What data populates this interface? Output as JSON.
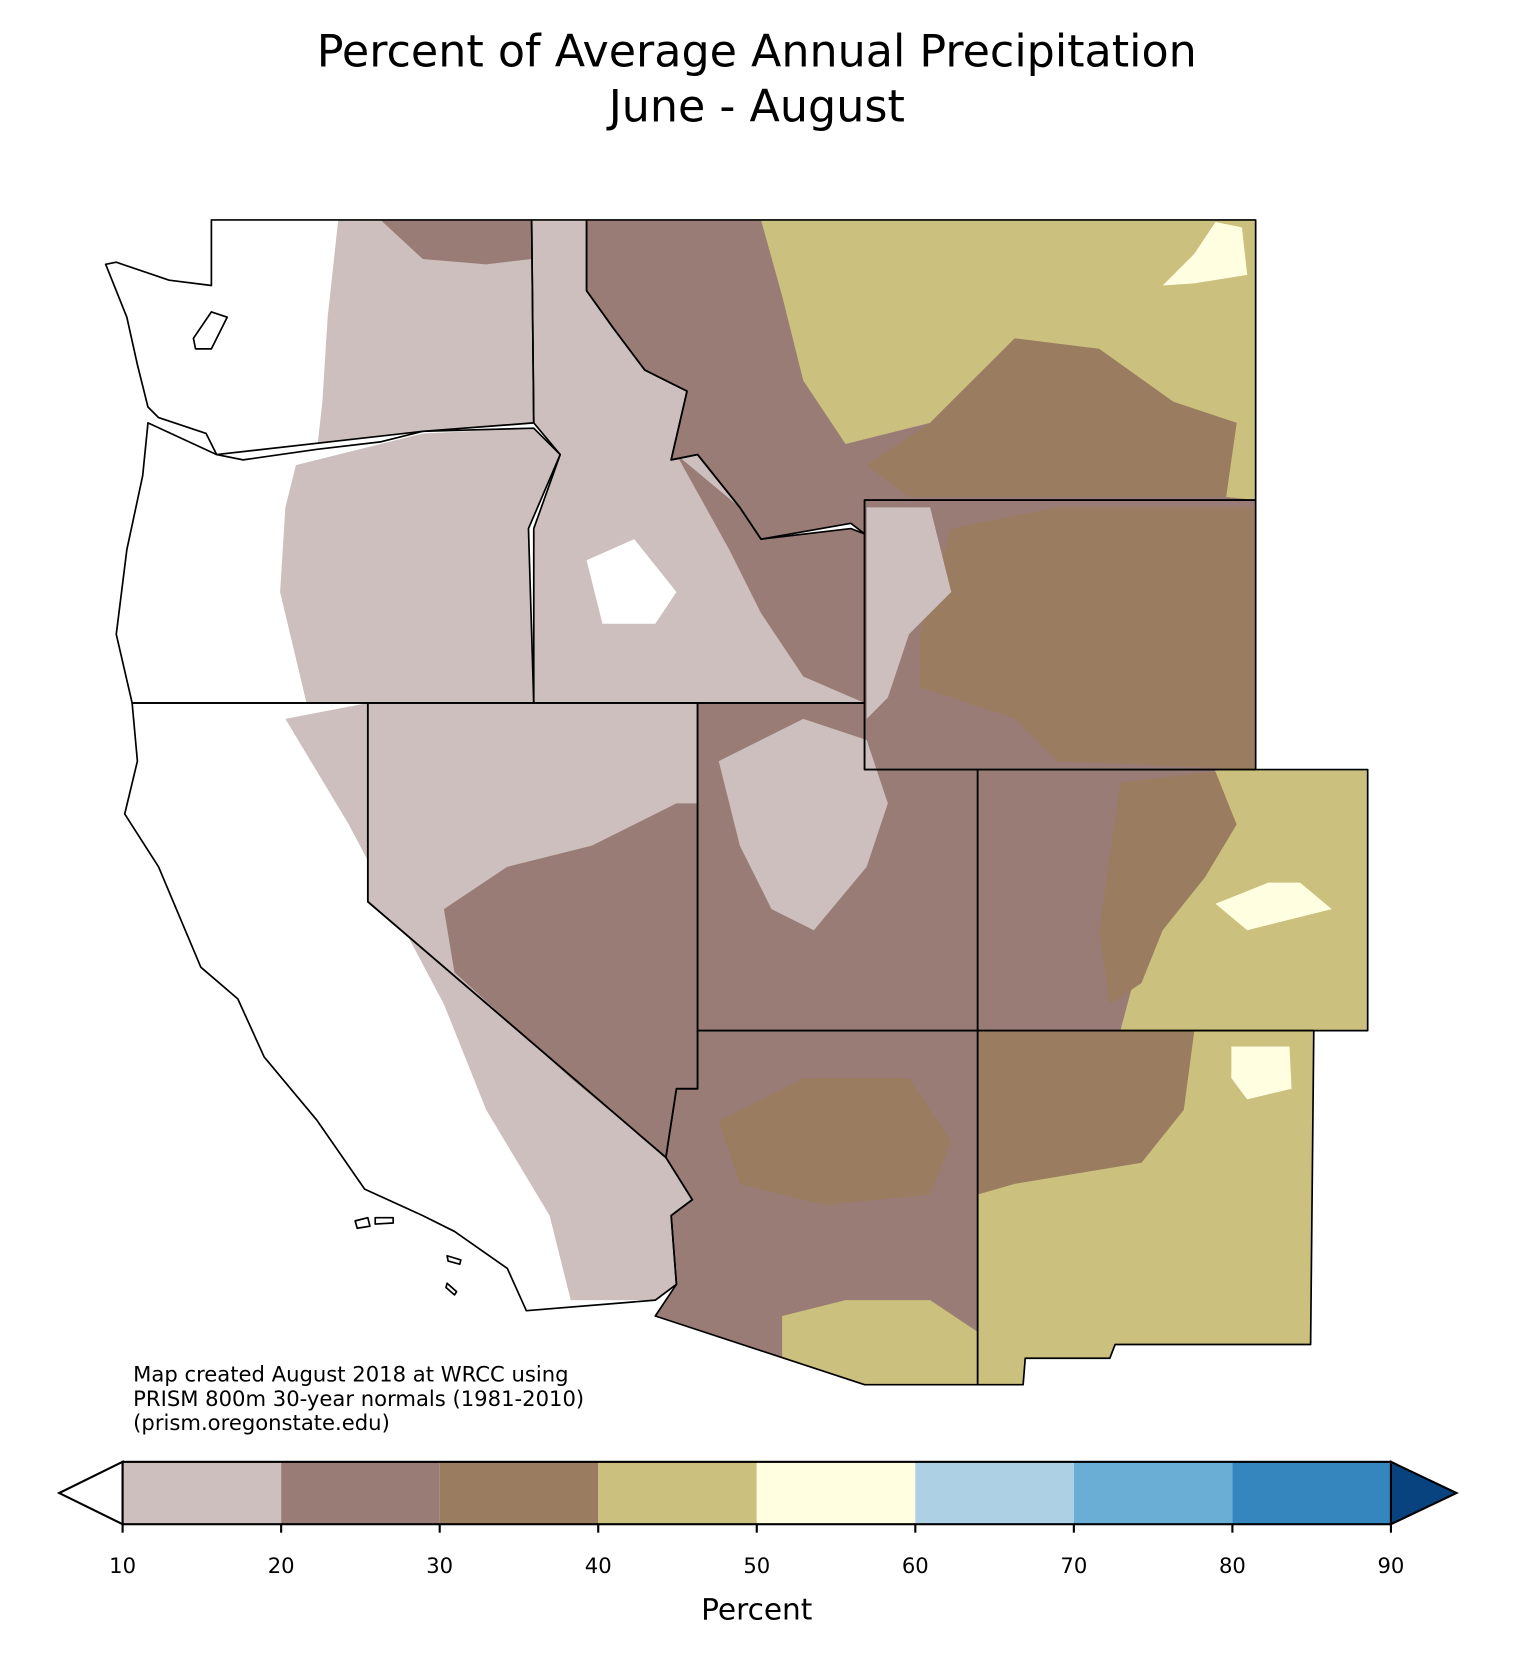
{
  "title": [
    "Percent of Average Annual Precipitation",
    "June - August"
  ],
  "note": [
    "Map created August 2018 at WRCC using",
    "PRISM 800m 30-year normals (1981-2010)",
    "(prism.oregonstate.edu)"
  ],
  "colorbar": {
    "label": "Percent",
    "ticks": [
      10,
      20,
      30,
      40,
      50,
      60,
      70,
      80,
      90
    ],
    "colors": [
      "#ccbfbd",
      "#9a7c76",
      "#9a7c60",
      "#cbc07e",
      "#fffee0",
      "#aed0e4",
      "#6aaed6",
      "#3585bf"
    ],
    "under_color": "#ffffff",
    "over_color": "#08437f"
  }
}
